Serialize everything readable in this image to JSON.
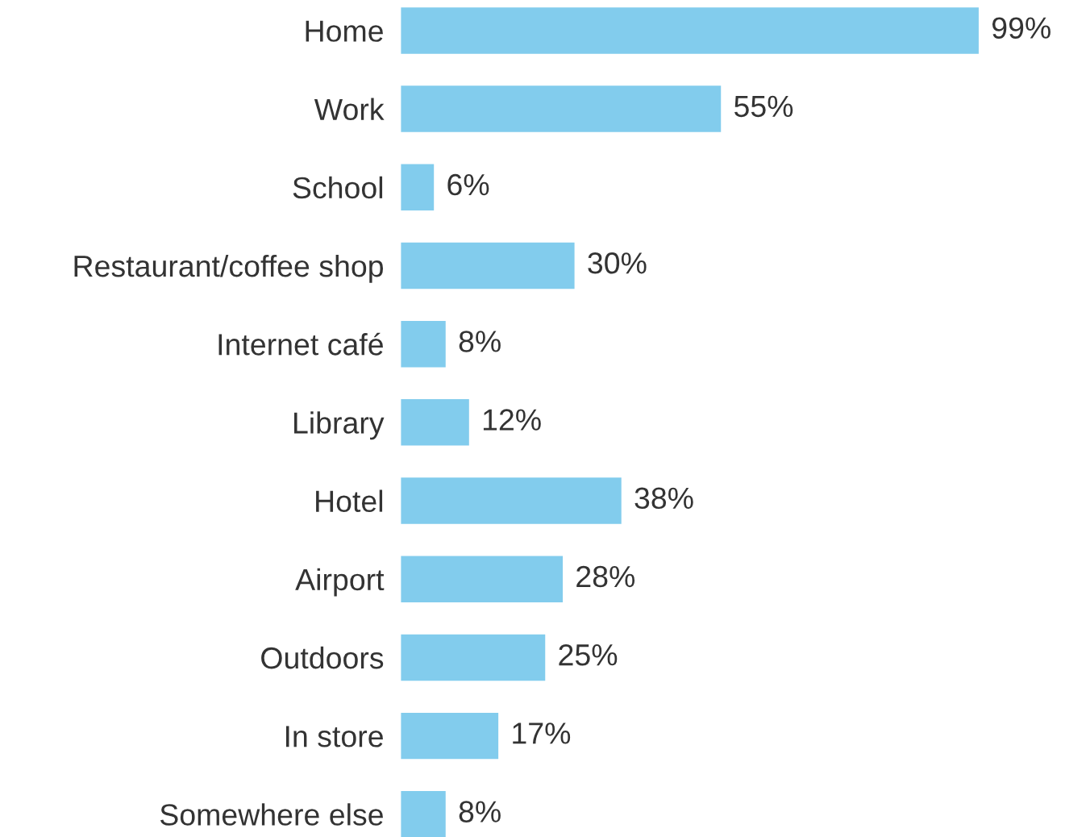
{
  "chart_data": {
    "type": "bar",
    "orientation": "horizontal",
    "color": "#82cced",
    "categories": [
      "Home",
      "Work",
      "School",
      "Restaurant/coffee shop",
      "Internet café",
      "Library",
      "Hotel",
      "Airport",
      "Outdoors",
      "In store",
      "Somewhere else"
    ],
    "values": [
      99,
      55,
      6,
      30,
      8,
      12,
      38,
      28,
      25,
      17,
      8
    ],
    "value_labels": [
      "99%",
      "55%",
      "6%",
      "30%",
      "8%",
      "12%",
      "38%",
      "28%",
      "25%",
      "17%",
      "8%"
    ],
    "grid": false,
    "legend": false
  }
}
